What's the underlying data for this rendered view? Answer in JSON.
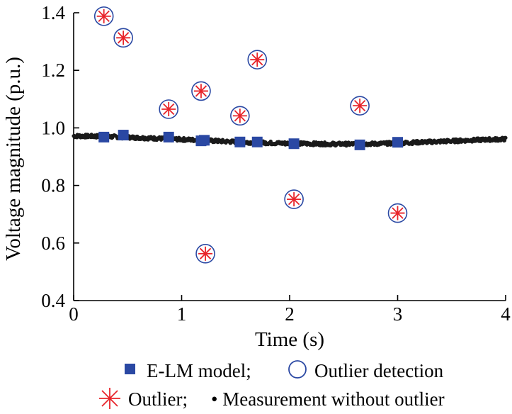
{
  "chart_data": {
    "type": "scatter",
    "xlabel": "Time (s)",
    "ylabel": "Voltage magnitude (p.u.)",
    "xlim": [
      0,
      4
    ],
    "ylim": [
      0.4,
      1.4
    ],
    "x_ticks": [
      "0",
      "1",
      "2",
      "3",
      "4"
    ],
    "y_ticks": [
      "0.4",
      "0.6",
      "0.8",
      "1.0",
      "1.2",
      "1.4"
    ],
    "grid": false,
    "legend_position": "bottom",
    "legend": {
      "line1_square": "E-LM model;",
      "line1_circle": "Outlier detection",
      "line2_star": "Outlier;",
      "line2_dot": "• Measurement without outlier"
    },
    "colors": {
      "elm": "#2a48a3",
      "outlier": "#e8242a",
      "detection": "#2a48a3",
      "measurement": "#1a1a1a"
    },
    "series": [
      {
        "name": "Measurement without outlier",
        "mark": "dots",
        "x": [
          0,
          0.2,
          0.4,
          0.6,
          0.8,
          1.0,
          1.2,
          1.4,
          1.6,
          1.8,
          2.0,
          2.2,
          2.4,
          2.6,
          2.8,
          3.0,
          3.2,
          3.4,
          3.6,
          3.8,
          4.0
        ],
        "y": [
          0.972,
          0.971,
          0.969,
          0.966,
          0.963,
          0.96,
          0.957,
          0.953,
          0.95,
          0.948,
          0.946,
          0.945,
          0.944,
          0.944,
          0.945,
          0.947,
          0.95,
          0.953,
          0.956,
          0.959,
          0.961
        ]
      },
      {
        "name": "E-LM model",
        "mark": "square",
        "x": [
          0.28,
          0.46,
          0.88,
          1.18,
          1.21,
          1.54,
          1.7,
          2.04,
          2.65,
          3.0
        ],
        "y": [
          0.968,
          0.975,
          0.968,
          0.955,
          0.957,
          0.951,
          0.951,
          0.945,
          0.941,
          0.95
        ]
      },
      {
        "name": "Outlier",
        "mark": "star",
        "x": [
          0.28,
          0.46,
          0.88,
          1.18,
          1.22,
          1.54,
          1.7,
          2.04,
          2.65,
          3.0
        ],
        "y": [
          1.388,
          1.313,
          1.065,
          1.128,
          0.563,
          1.042,
          1.237,
          0.752,
          1.077,
          0.704
        ]
      },
      {
        "name": "Outlier detection",
        "mark": "circle",
        "x": [
          0.28,
          0.46,
          0.88,
          1.18,
          1.22,
          1.54,
          1.7,
          2.04,
          2.65,
          3.0
        ],
        "y": [
          1.388,
          1.313,
          1.065,
          1.128,
          0.563,
          1.042,
          1.237,
          0.752,
          1.077,
          0.704
        ]
      }
    ]
  }
}
